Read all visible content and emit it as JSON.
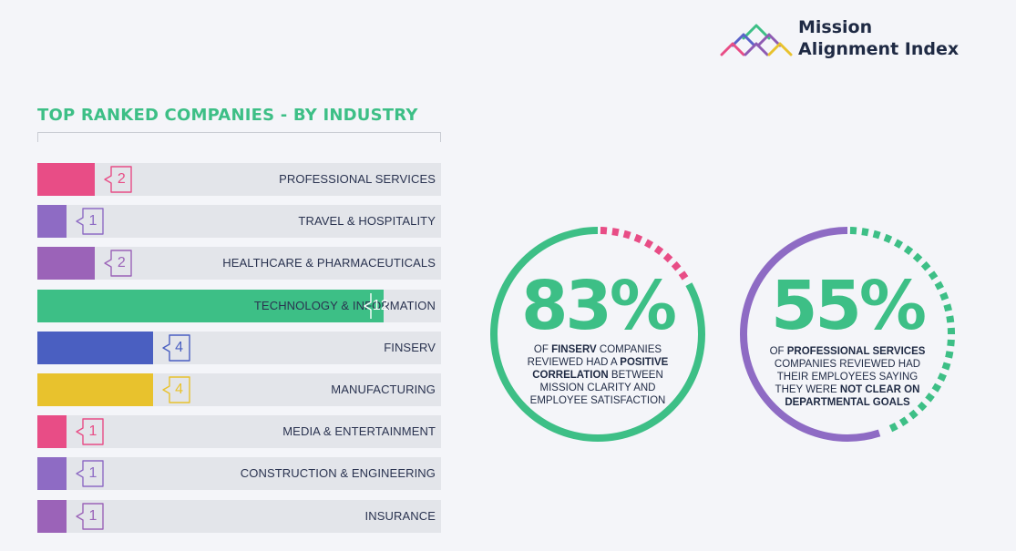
{
  "brand": {
    "name_line1": "Mission",
    "name_line2": "Alignment Index",
    "logo_colors": [
      "#3dbf86",
      "#e84d86",
      "#8e5bb3",
      "#5a63c9",
      "#e8c22d"
    ]
  },
  "chart_data": {
    "type": "bar",
    "orientation": "horizontal",
    "title": "TOP RANKED COMPANIES - BY INDUSTRY",
    "xlim": [
      0,
      14
    ],
    "categories": [
      "PROFESSIONAL SERVICES",
      "TRAVEL & HOSPITALITY",
      "HEALTHCARE & PHARMACEUTICALS",
      "TECHNOLOGY & INFORMATION",
      "FINSERV",
      "MANUFACTURING",
      "MEDIA & ENTERTAINMENT",
      "CONSTRUCTION & ENGINEERING",
      "INSURANCE"
    ],
    "values": [
      2,
      1,
      2,
      12,
      4,
      4,
      1,
      1,
      1
    ],
    "colors": [
      "#e84d86",
      "#8e6bc4",
      "#9b63b8",
      "#3dbf86",
      "#4a5fc1",
      "#e8c22d",
      "#e84d86",
      "#8e6bc4",
      "#9b63b8"
    ],
    "track_color": "#e3e5ea"
  },
  "stats": [
    {
      "value": "83%",
      "percent": 83,
      "text_before": "OF ",
      "bold1": "FINSERV",
      "text_mid": " COMPANIES REVIEWED HAD A ",
      "bold2": "POSITIVE CORRELATION",
      "text_after": " BETWEEN MISSION CLARITY AND EMPLOYEE SATISFACTION",
      "solid_color": "#3dbf86",
      "dash_color": "#e84d86"
    },
    {
      "value": "55%",
      "percent": 55,
      "text_before": "OF ",
      "bold1": "PROFESSIONAL SERVICES",
      "text_mid": " COMPANIES REVIEWED HAD THEIR EMPLOYEES SAYING THEY WERE ",
      "bold2": "NOT CLEAR ON DEPARTMENTAL GOALS",
      "text_after": "",
      "solid_color": "#8e6bc4",
      "dash_color": "#3dbf86"
    }
  ]
}
